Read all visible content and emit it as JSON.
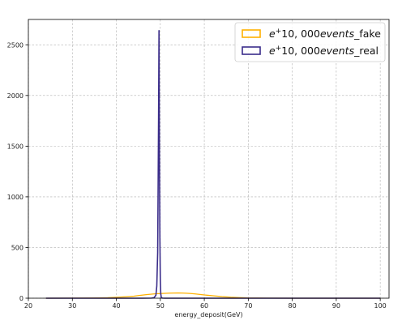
{
  "chart_data": {
    "type": "step-histogram",
    "xlabel": "energy_deposit(GeV)",
    "ylabel": "",
    "xlim": [
      20,
      102
    ],
    "ylim": [
      0,
      2750
    ],
    "xticks": [
      20,
      30,
      40,
      50,
      60,
      70,
      80,
      90,
      100
    ],
    "yticks": [
      0,
      500,
      1000,
      1500,
      2000,
      2500
    ],
    "grid": true,
    "legend_position": "top-right",
    "series": [
      {
        "name": "e⁺10,000events_fake",
        "legend_math": "e^+10,000events",
        "legend_suffix": "_fake",
        "color": "#ffb000",
        "x": [
          24,
          30,
          34,
          36,
          38,
          40,
          42,
          44,
          45,
          46,
          47,
          48,
          49,
          50,
          51,
          52,
          53,
          54,
          55,
          56,
          57,
          58,
          59,
          60,
          62,
          64,
          66,
          68,
          70,
          74,
          80,
          90,
          100
        ],
        "y": [
          0,
          1,
          2,
          3,
          5,
          9,
          14,
          20,
          26,
          31,
          36,
          40,
          44,
          46,
          48,
          50,
          51,
          52,
          51,
          49,
          46,
          42,
          37,
          32,
          24,
          16,
          10,
          6,
          3,
          1,
          0,
          0,
          0
        ]
      },
      {
        "name": "e⁺10,000events_real",
        "legend_math": "e^+10,000events",
        "legend_suffix": "_real",
        "color": "#3a2c8a",
        "x": [
          24,
          40,
          46,
          48,
          48.6,
          49.0,
          49.2,
          49.4,
          49.5,
          49.6,
          49.7,
          49.8,
          49.9,
          50.0,
          50.1,
          50.2,
          50.3,
          50.5,
          51,
          52,
          60,
          80,
          100
        ],
        "y": [
          0,
          0,
          0,
          1,
          6,
          30,
          120,
          450,
          1080,
          1750,
          2640,
          1400,
          600,
          170,
          45,
          12,
          4,
          1,
          0,
          0,
          0,
          0,
          0
        ]
      }
    ]
  }
}
